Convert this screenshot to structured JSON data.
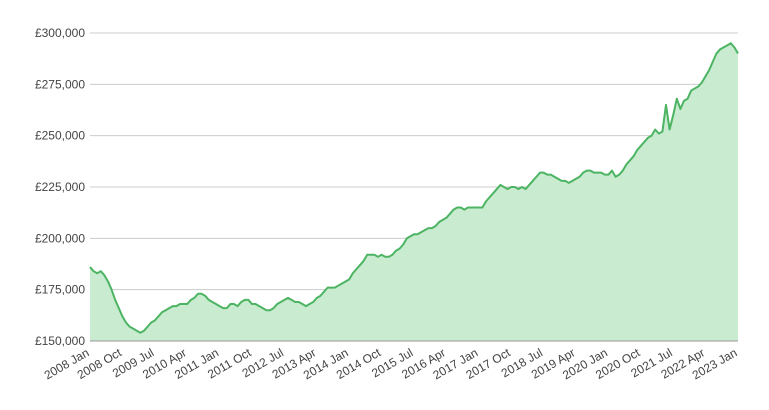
{
  "chart_data": {
    "type": "area",
    "categories": [
      "2008 Jan",
      null,
      null,
      null,
      null,
      null,
      null,
      null,
      null,
      "2008 Oct",
      null,
      null,
      null,
      null,
      null,
      null,
      null,
      null,
      "2009 Jul",
      null,
      null,
      null,
      null,
      null,
      null,
      null,
      null,
      "2010 Apr",
      null,
      null,
      null,
      null,
      null,
      null,
      null,
      null,
      "2011 Jan",
      null,
      null,
      null,
      null,
      null,
      null,
      null,
      null,
      "2011 Oct",
      null,
      null,
      null,
      null,
      null,
      null,
      null,
      null,
      "2012 Jul",
      null,
      null,
      null,
      null,
      null,
      null,
      null,
      null,
      "2013 Apr",
      null,
      null,
      null,
      null,
      null,
      null,
      null,
      null,
      "2014 Jan",
      null,
      null,
      null,
      null,
      null,
      null,
      null,
      null,
      "2014 Oct",
      null,
      null,
      null,
      null,
      null,
      null,
      null,
      null,
      "2015 Jul",
      null,
      null,
      null,
      null,
      null,
      null,
      null,
      null,
      "2016 Apr",
      null,
      null,
      null,
      null,
      null,
      null,
      null,
      null,
      "2017 Jan",
      null,
      null,
      null,
      null,
      null,
      null,
      null,
      null,
      "2017 Oct",
      null,
      null,
      null,
      null,
      null,
      null,
      null,
      null,
      "2018 Jul",
      null,
      null,
      null,
      null,
      null,
      null,
      null,
      null,
      "2019 Apr",
      null,
      null,
      null,
      null,
      null,
      null,
      null,
      null,
      "2020 Jan",
      null,
      null,
      null,
      null,
      null,
      null,
      null,
      null,
      "2020 Oct",
      null,
      null,
      null,
      null,
      null,
      null,
      null,
      null,
      "2021 Jul",
      null,
      null,
      null,
      null,
      null,
      null,
      null,
      null,
      "2022 Apr",
      null,
      null,
      null,
      null,
      null,
      null,
      null,
      null,
      "2023 Jan"
    ],
    "values": [
      186000,
      184000,
      183000,
      184000,
      182000,
      179000,
      175000,
      170000,
      166000,
      162000,
      159000,
      157000,
      156000,
      155000,
      154000,
      155000,
      157000,
      159000,
      160000,
      162000,
      164000,
      165000,
      166000,
      167000,
      167000,
      168000,
      168000,
      168000,
      170000,
      171000,
      173000,
      173000,
      172000,
      170000,
      169000,
      168000,
      167000,
      166000,
      166000,
      168000,
      168000,
      167000,
      169000,
      170000,
      170000,
      168000,
      168000,
      167000,
      166000,
      165000,
      165000,
      166000,
      168000,
      169000,
      170000,
      171000,
      170000,
      169000,
      169000,
      168000,
      167000,
      168000,
      169000,
      171000,
      172000,
      174000,
      176000,
      176000,
      176000,
      177000,
      178000,
      179000,
      180000,
      183000,
      185000,
      187000,
      189000,
      192000,
      192000,
      192000,
      191000,
      192000,
      191000,
      191000,
      192000,
      194000,
      195000,
      197000,
      200000,
      201000,
      202000,
      202000,
      203000,
      204000,
      205000,
      205000,
      206000,
      208000,
      209000,
      210000,
      212000,
      214000,
      215000,
      215000,
      214000,
      215000,
      215000,
      215000,
      215000,
      215000,
      218000,
      220000,
      222000,
      224000,
      226000,
      225000,
      224000,
      225000,
      225000,
      224000,
      225000,
      224000,
      226000,
      228000,
      230000,
      232000,
      232000,
      231000,
      231000,
      230000,
      229000,
      228000,
      228000,
      227000,
      228000,
      229000,
      230000,
      232000,
      233000,
      233000,
      232000,
      232000,
      232000,
      231000,
      231000,
      233000,
      230000,
      231000,
      233000,
      236000,
      238000,
      240000,
      243000,
      245000,
      247000,
      249000,
      250000,
      253000,
      251000,
      252000,
      265000,
      253000,
      260000,
      268000,
      263000,
      267000,
      268000,
      272000,
      273000,
      274000,
      276000,
      279000,
      282000,
      286000,
      290000,
      292000,
      293000,
      294000,
      295000,
      293000,
      290000
    ],
    "color": "#4cb462",
    "fill": "#c9ebd0",
    "ylim": [
      150000,
      300000
    ],
    "yticks": [
      {
        "value": 150000,
        "label": "£150,000"
      },
      {
        "value": 175000,
        "label": "£175,000"
      },
      {
        "value": 200000,
        "label": "£200,000"
      },
      {
        "value": 225000,
        "label": "£225,000"
      },
      {
        "value": 250000,
        "label": "£250,000"
      },
      {
        "value": 275000,
        "label": "£275,000"
      },
      {
        "value": 300000,
        "label": "£300,000"
      }
    ],
    "grid": true
  }
}
